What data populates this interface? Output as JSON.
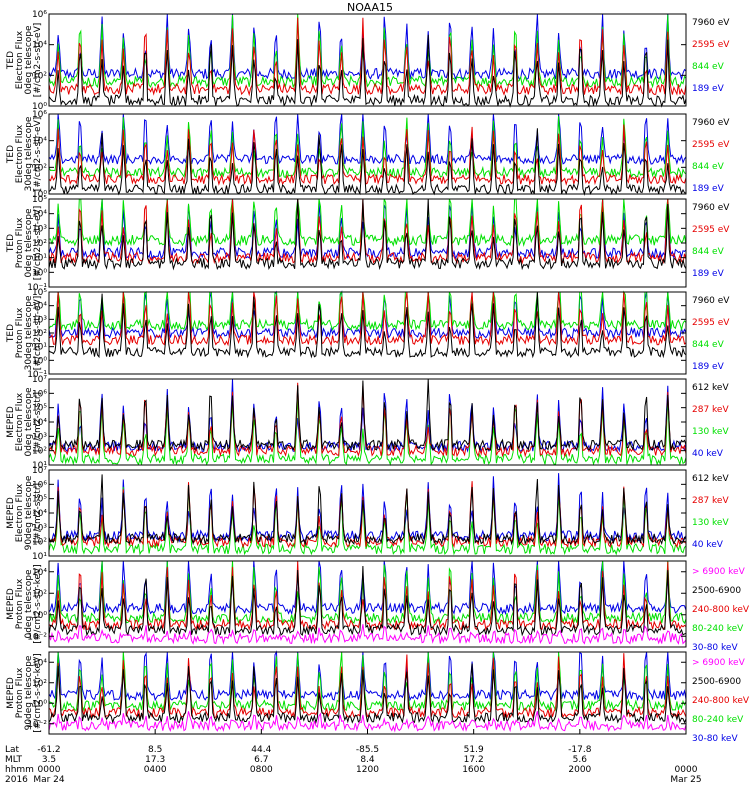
{
  "title": "NOAA15",
  "colors": {
    "black": "#000000",
    "red": "#e60000",
    "green": "#00e000",
    "blue": "#0000e6",
    "magenta": "#ff00ff"
  },
  "chart_data": {
    "type": "line",
    "x_range_hours": [
      0,
      24
    ],
    "panels": [
      {
        "ylabel": [
          "TED",
          "Electron Flux",
          "0deg telescope",
          "[#/cm2-s-str-eV]"
        ],
        "yscale": "log",
        "ylim_exp": [
          0,
          6
        ],
        "ticks": [
          {
            "exp": 0,
            "label": "10⁰"
          },
          {
            "exp": 2,
            "label": "10²"
          },
          {
            "exp": 4,
            "label": "10⁴"
          },
          {
            "exp": 6,
            "label": "10⁶"
          }
        ],
        "baselines": [
          0.35,
          1.1,
          1.6,
          2.1
        ],
        "legend": [
          {
            "text": "7960 eV",
            "color": "black"
          },
          {
            "text": "2595 eV",
            "color": "red"
          },
          {
            "text": "844 eV",
            "color": "green"
          },
          {
            "text": "189 eV",
            "color": "blue"
          }
        ]
      },
      {
        "ylabel": [
          "TED",
          "Electron Flux",
          "30deg telescope",
          "[#/cm2-s-str-eV]"
        ],
        "yscale": "log",
        "ylim_exp": [
          0,
          6
        ],
        "ticks": [
          {
            "exp": 0,
            "label": "10⁰"
          },
          {
            "exp": 2,
            "label": "10²"
          },
          {
            "exp": 4,
            "label": "10⁴"
          },
          {
            "exp": 6,
            "label": "10⁶"
          }
        ],
        "baselines": [
          0.35,
          1.1,
          1.6,
          2.6
        ],
        "legend": [
          {
            "text": "7960 eV",
            "color": "black"
          },
          {
            "text": "2595 eV",
            "color": "red"
          },
          {
            "text": "844 eV",
            "color": "green"
          },
          {
            "text": "189 eV",
            "color": "blue"
          }
        ]
      },
      {
        "ylabel": [
          "TED",
          "Proton Flux",
          "0deg telescope",
          "[#/cm2-s-str-eV]"
        ],
        "yscale": "log",
        "ylim_exp": [
          -1,
          5
        ],
        "ticks": [
          {
            "exp": -1,
            "label": "10⁻¹"
          },
          {
            "exp": 0,
            "label": "10⁰"
          },
          {
            "exp": 1,
            "label": "10¹"
          },
          {
            "exp": 2,
            "label": "10²"
          },
          {
            "exp": 3,
            "label": "10³"
          },
          {
            "exp": 4,
            "label": "10⁴"
          },
          {
            "exp": 5,
            "label": "10⁵"
          }
        ],
        "baselines": [
          0.6,
          1.0,
          2.2,
          1.3
        ],
        "legend": [
          {
            "text": "7960 eV",
            "color": "black"
          },
          {
            "text": "2595 eV",
            "color": "red"
          },
          {
            "text": "844 eV",
            "color": "green"
          },
          {
            "text": "189 eV",
            "color": "blue"
          }
        ]
      },
      {
        "ylabel": [
          "TED",
          "Proton Flux",
          "30deg telescope",
          "[#/cm2-s-str-eV]"
        ],
        "yscale": "log",
        "ylim_exp": [
          -1,
          5
        ],
        "ticks": [
          {
            "exp": -1,
            "label": "10⁻¹"
          },
          {
            "exp": 0,
            "label": "10⁰"
          },
          {
            "exp": 1,
            "label": "10¹"
          },
          {
            "exp": 2,
            "label": "10²"
          },
          {
            "exp": 3,
            "label": "10³"
          },
          {
            "exp": 4,
            "label": "10⁴"
          },
          {
            "exp": 5,
            "label": "10⁵"
          }
        ],
        "baselines": [
          0.6,
          1.5,
          2.6,
          2.0
        ],
        "legend": [
          {
            "text": "7960 eV",
            "color": "black"
          },
          {
            "text": "2595 eV",
            "color": "red"
          },
          {
            "text": "844 eV",
            "color": "green"
          },
          {
            "text": "189 eV",
            "color": "blue"
          }
        ]
      },
      {
        "ylabel": [
          "MEPED",
          "Electron Flux",
          "0deg telescope",
          "[#/cm2-s-str]"
        ],
        "yscale": "log",
        "ylim_exp": [
          1,
          7
        ],
        "ticks": [
          {
            "exp": 1,
            "label": "10¹"
          },
          {
            "exp": 2,
            "label": "10²"
          },
          {
            "exp": 3,
            "label": "10³"
          },
          {
            "exp": 4,
            "label": "10⁴"
          },
          {
            "exp": 5,
            "label": "10⁵"
          },
          {
            "exp": 6,
            "label": "10⁶"
          },
          {
            "exp": 7,
            "label": "10⁷"
          }
        ],
        "baselines": [
          2.4,
          2.0,
          1.4,
          2.3
        ],
        "legend": [
          {
            "text": "612 keV",
            "color": "black"
          },
          {
            "text": "287 keV",
            "color": "red"
          },
          {
            "text": "130 keV",
            "color": "green"
          },
          {
            "text": "40 keV",
            "color": "blue"
          }
        ]
      },
      {
        "ylabel": [
          "MEPED",
          "Electron Flux",
          "90deg telescope",
          "[#/cm2-s-str]"
        ],
        "yscale": "log",
        "ylim_exp": [
          1,
          7
        ],
        "ticks": [
          {
            "exp": 1,
            "label": "10¹"
          },
          {
            "exp": 2,
            "label": "10²"
          },
          {
            "exp": 3,
            "label": "10³"
          },
          {
            "exp": 4,
            "label": "10⁴"
          },
          {
            "exp": 5,
            "label": "10⁵"
          },
          {
            "exp": 6,
            "label": "10⁶"
          },
          {
            "exp": 7,
            "label": "10⁷"
          }
        ],
        "baselines": [
          2.2,
          2.0,
          1.5,
          2.4
        ],
        "legend": [
          {
            "text": "612 keV",
            "color": "black"
          },
          {
            "text": "287 keV",
            "color": "red"
          },
          {
            "text": "130 keV",
            "color": "green"
          },
          {
            "text": "40 keV",
            "color": "blue"
          }
        ]
      },
      {
        "ylabel": [
          "MEPED",
          "Proton Flux",
          "0deg telescope",
          "[#/cm2-s-str-keV]"
        ],
        "yscale": "log",
        "ylim_exp": [
          -3,
          5
        ],
        "ticks": [
          {
            "exp": -2,
            "label": "10⁻²"
          },
          {
            "exp": 0,
            "label": "10⁰"
          },
          {
            "exp": 2,
            "label": "10²"
          },
          {
            "exp": 4,
            "label": "10⁴"
          }
        ],
        "baselines": [
          -2.2,
          -1.4,
          -0.9,
          -0.3,
          0.6
        ],
        "legend": [
          {
            "text": "> 6900 keV",
            "color": "magenta"
          },
          {
            "text": "2500-6900",
            "color": "black"
          },
          {
            "text": "240-800 keV",
            "color": "red"
          },
          {
            "text": "80-240 keV",
            "color": "green"
          },
          {
            "text": "30-80 keV",
            "color": "blue"
          }
        ]
      },
      {
        "ylabel": [
          "MEPED",
          "Proton Flux",
          "90deg telescope",
          "[#/cm2-s-str-keV]"
        ],
        "yscale": "log",
        "ylim_exp": [
          -3,
          5
        ],
        "ticks": [
          {
            "exp": -2,
            "label": "10⁻²"
          },
          {
            "exp": 0,
            "label": "10⁰"
          },
          {
            "exp": 2,
            "label": "10²"
          },
          {
            "exp": 4,
            "label": "10⁴"
          }
        ],
        "baselines": [
          -2.2,
          -1.4,
          -0.9,
          -0.2,
          0.8
        ],
        "legend": [
          {
            "text": "> 6900 keV",
            "color": "magenta"
          },
          {
            "text": "2500-6900",
            "color": "black"
          },
          {
            "text": "240-800 keV",
            "color": "red"
          },
          {
            "text": "80-240 keV",
            "color": "green"
          },
          {
            "text": "30-80 keV",
            "color": "blue"
          }
        ]
      }
    ],
    "x_axis": {
      "row_labels": [
        "Lat",
        "MLT",
        "hhmm",
        "2016"
      ],
      "ticks": [
        {
          "hour": 0,
          "values": [
            "-61.2",
            "3.5",
            "0000",
            "Mar 24"
          ]
        },
        {
          "hour": 4,
          "values": [
            "8.5",
            "17.3",
            "0400",
            ""
          ]
        },
        {
          "hour": 8,
          "values": [
            "44.4",
            "6.7",
            "0800",
            ""
          ]
        },
        {
          "hour": 12,
          "values": [
            "-85.5",
            "8.4",
            "1200",
            ""
          ]
        },
        {
          "hour": 16,
          "values": [
            "51.9",
            "17.2",
            "1600",
            ""
          ]
        },
        {
          "hour": 20,
          "values": [
            "-17.8",
            "5.6",
            "2000",
            ""
          ]
        },
        {
          "hour": 24,
          "values": [
            "",
            "",
            "0000",
            "Mar 25"
          ]
        }
      ]
    }
  }
}
